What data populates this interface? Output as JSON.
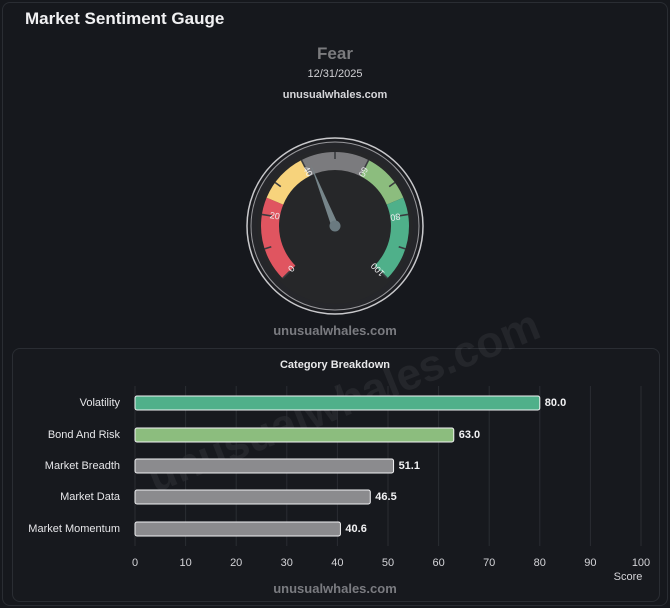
{
  "page": {
    "title": "Market Sentiment Gauge"
  },
  "colors": {
    "extreme_fear": "#e05560",
    "fear": "#f7d37c",
    "neutral": "#7b7b7e",
    "greed": "#8cbd7e",
    "extreme_greed": "#4fb08a",
    "bar_neutral": "#8b8b8e"
  },
  "chart_data": [
    {
      "type": "gauge",
      "title": "Fear",
      "date": "12/31/2025",
      "source": "unusualwhales.com",
      "watermark": "unusualwhales.com",
      "value": 42,
      "range": [
        0,
        100
      ],
      "tick_labels": [
        "0",
        "20",
        "40",
        "60",
        "80",
        "100"
      ],
      "bands": [
        {
          "from": 0,
          "to": 25,
          "color": "#e05560"
        },
        {
          "from": 25,
          "to": 40,
          "color": "#f7d37c"
        },
        {
          "from": 40,
          "to": 60,
          "color": "#7b7b7e"
        },
        {
          "from": 60,
          "to": 75,
          "color": "#8cbd7e"
        },
        {
          "from": 75,
          "to": 100,
          "color": "#4fb08a"
        }
      ]
    },
    {
      "type": "bar",
      "orientation": "horizontal",
      "title": "Category Breakdown",
      "xlabel": "Score",
      "ylabel": "",
      "xlim": [
        0,
        100
      ],
      "ticks": [
        "0",
        "10",
        "20",
        "30",
        "40",
        "50",
        "60",
        "70",
        "80",
        "90",
        "100"
      ],
      "grid": true,
      "watermark": "unusualwhales.com",
      "diagonal_watermark": "unusualwhales.com",
      "categories": [
        "Volatility",
        "Bond And Risk",
        "Market Breadth",
        "Market Data",
        "Market Momentum"
      ],
      "values": [
        80.0,
        63.0,
        51.1,
        46.5,
        40.6
      ],
      "value_labels": [
        "80.0",
        "63.0",
        "51.1",
        "46.5",
        "40.6"
      ],
      "bar_colors": [
        "#4fb08a",
        "#8cbd7e",
        "#8b8b8e",
        "#8b8b8e",
        "#8b8b8e"
      ]
    }
  ]
}
